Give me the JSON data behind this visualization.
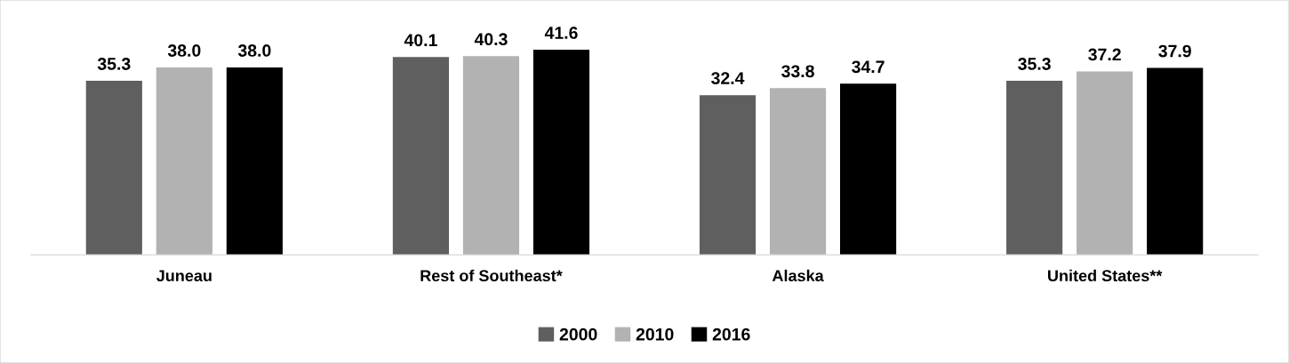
{
  "chart_data": {
    "type": "bar",
    "categories": [
      "Juneau",
      "Rest of Southeast*",
      "Alaska",
      "United States**"
    ],
    "series": [
      {
        "name": "2000",
        "color": "#5f5f5f",
        "values": [
          35.3,
          40.1,
          32.4,
          35.3
        ],
        "value_labels": [
          "35.3",
          "40.1",
          "32.4",
          "35.3"
        ]
      },
      {
        "name": "2010",
        "color": "#b2b2b2",
        "values": [
          38.0,
          40.3,
          33.8,
          37.2
        ],
        "value_labels": [
          "38.0",
          "40.3",
          "33.8",
          "37.2"
        ]
      },
      {
        "name": "2016",
        "color": "#000000",
        "values": [
          38.0,
          41.6,
          34.7,
          37.9
        ],
        "value_labels": [
          "38.0",
          "41.6",
          "34.7",
          "37.9"
        ]
      }
    ],
    "legend": "bottom"
  }
}
